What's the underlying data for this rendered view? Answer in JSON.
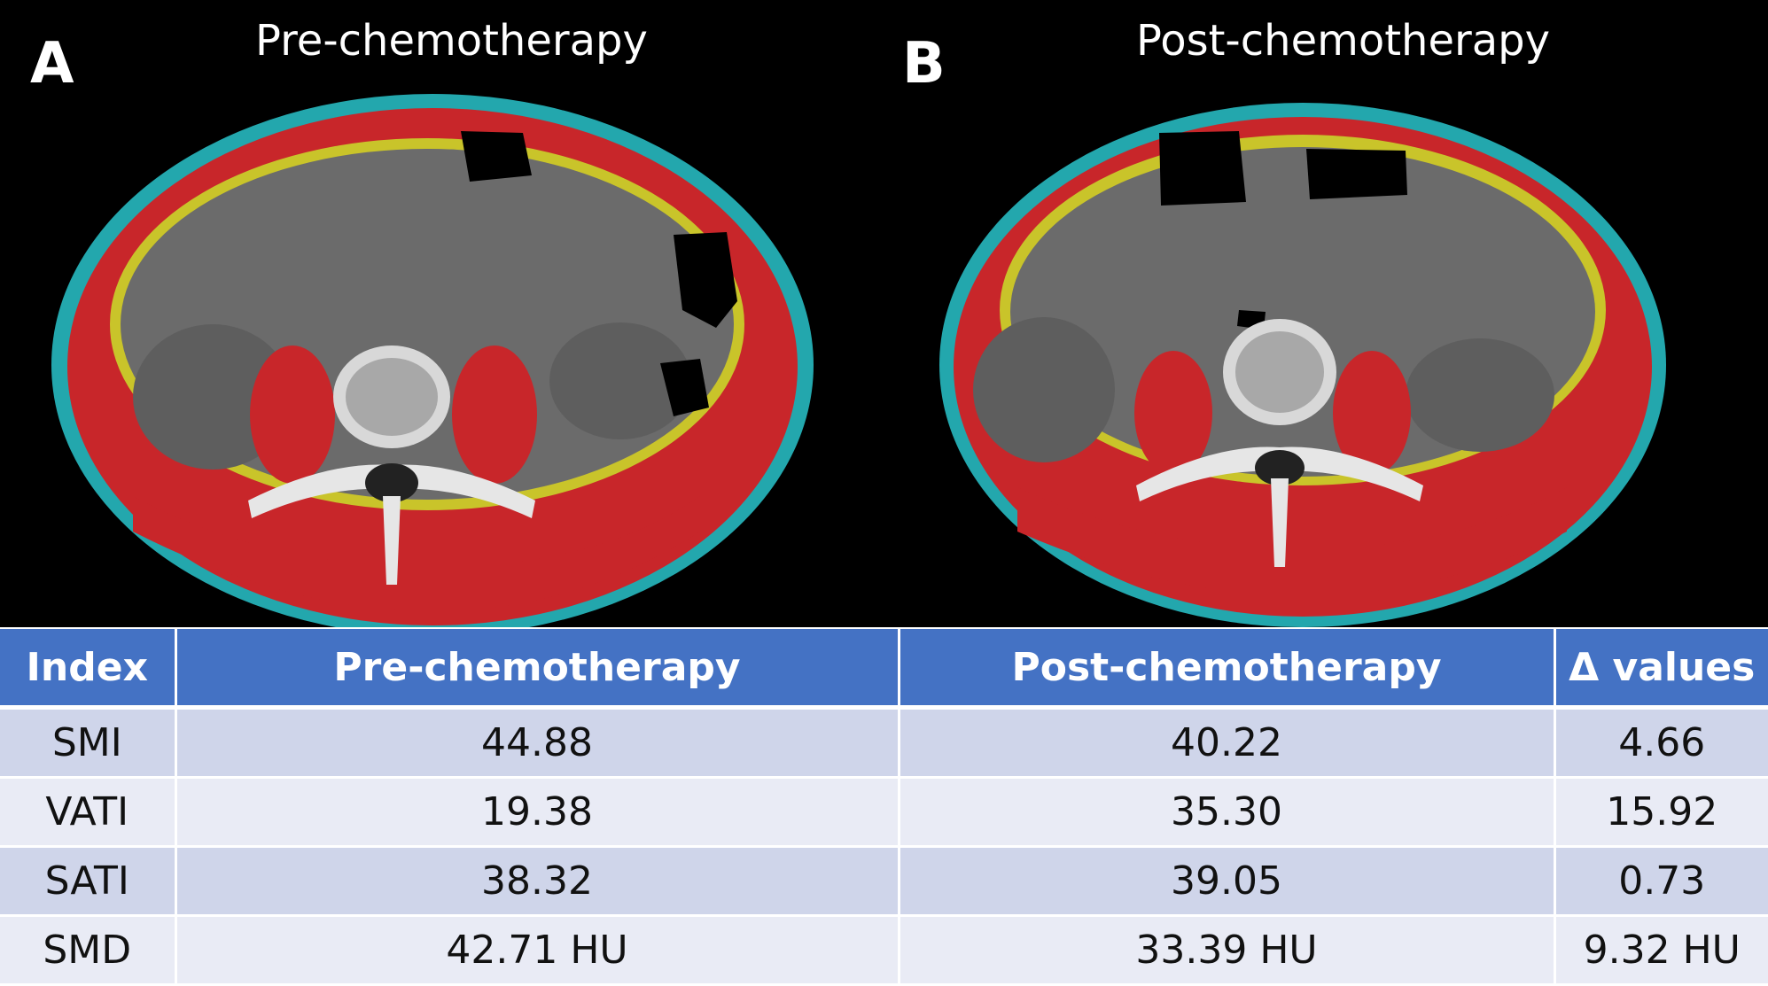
{
  "panels": [
    {
      "letter": "A",
      "title": "Pre-chemotherapy"
    },
    {
      "letter": "B",
      "title": "Post-chemotherapy"
    }
  ],
  "colors": {
    "muscle": "#c8262a",
    "visceral_fat": "#c9c42a",
    "subcutaneous_fat": "#23a7ad",
    "background": "#000000",
    "table_header": "#4472c4",
    "row_dark": "#cfd5ea",
    "row_light": "#e9ebf5"
  },
  "table": {
    "headers": [
      "Index",
      "Pre-chemotherapy",
      "Post-chemotherapy",
      "Δ values"
    ],
    "rows": [
      [
        "SMI",
        "44.88",
        "40.22",
        "4.66"
      ],
      [
        "VATI",
        "19.38",
        "35.30",
        "15.92"
      ],
      [
        "SATI",
        "38.32",
        "39.05",
        "0.73"
      ],
      [
        "SMD",
        "42.71 HU",
        "33.39 HU",
        "9.32 HU"
      ]
    ]
  }
}
